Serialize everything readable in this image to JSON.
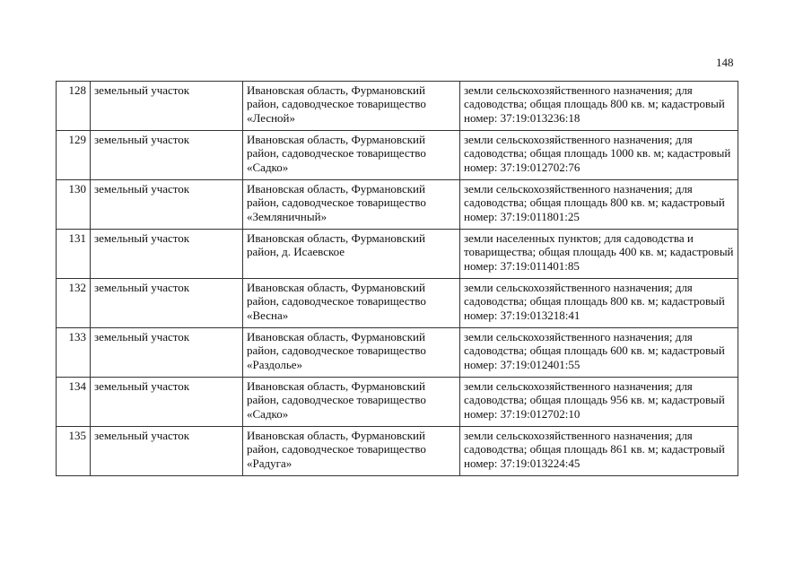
{
  "page_number": "148",
  "rows": [
    {
      "num": "128",
      "type": "земельный участок",
      "address": "Ивановская область, Фурмановский район, садоводческое товарищество «Лесной»",
      "description": "земли сельскохозяйственного назначения; для садоводства; общая площадь 800 кв. м; кадастровый номер: 37:19:013236:18"
    },
    {
      "num": "129",
      "type": "земельный участок",
      "address": "Ивановская область, Фурмановский район, садоводческое товарищество «Садко»",
      "description": "земли сельскохозяйственного назначения; для садоводства; общая площадь 1000 кв. м; кадастровый номер: 37:19:012702:76"
    },
    {
      "num": "130",
      "type": "земельный участок",
      "address": "Ивановская область, Фурмановский район, садоводческое товарищество «Земляничный»",
      "description": "земли сельскохозяйственного назначения; для садоводства; общая площадь 800 кв. м; кадастровый номер: 37:19:011801:25"
    },
    {
      "num": "131",
      "type": "земельный участок",
      "address": "Ивановская область, Фурмановский район, д. Исаевское",
      "description": "земли населенных пунктов; для садоводства и товарищества; общая площадь 400 кв. м; кадастровый номер: 37:19:011401:85"
    },
    {
      "num": "132",
      "type": "земельный участок",
      "address": "Ивановская область, Фурмановский район, садоводческое товарищество «Весна»",
      "description": "земли сельскохозяйственного назначения; для садоводства; общая площадь 800 кв. м; кадастровый номер: 37:19:013218:41"
    },
    {
      "num": "133",
      "type": "земельный участок",
      "address": "Ивановская область, Фурмановский район, садоводческое товарищество «Раздолье»",
      "description": "земли сельскохозяйственного назначения; для садоводства; общая площадь 600 кв. м; кадастровый номер: 37:19:012401:55"
    },
    {
      "num": "134",
      "type": "земельный участок",
      "address": "Ивановская область, Фурмановский район, садоводческое товарищество «Садко»",
      "description": "земли сельскохозяйственного назначения; для садоводства; общая площадь 956 кв. м; кадастровый номер: 37:19:012702:10"
    },
    {
      "num": "135",
      "type": "земельный участок",
      "address": "Ивановская область, Фурмановский район, садоводческое товарищество «Радуга»",
      "description": "земли сельскохозяйственного назначения; для садоводства; общая площадь 861 кв. м; кадастровый номер: 37:19:013224:45"
    }
  ]
}
